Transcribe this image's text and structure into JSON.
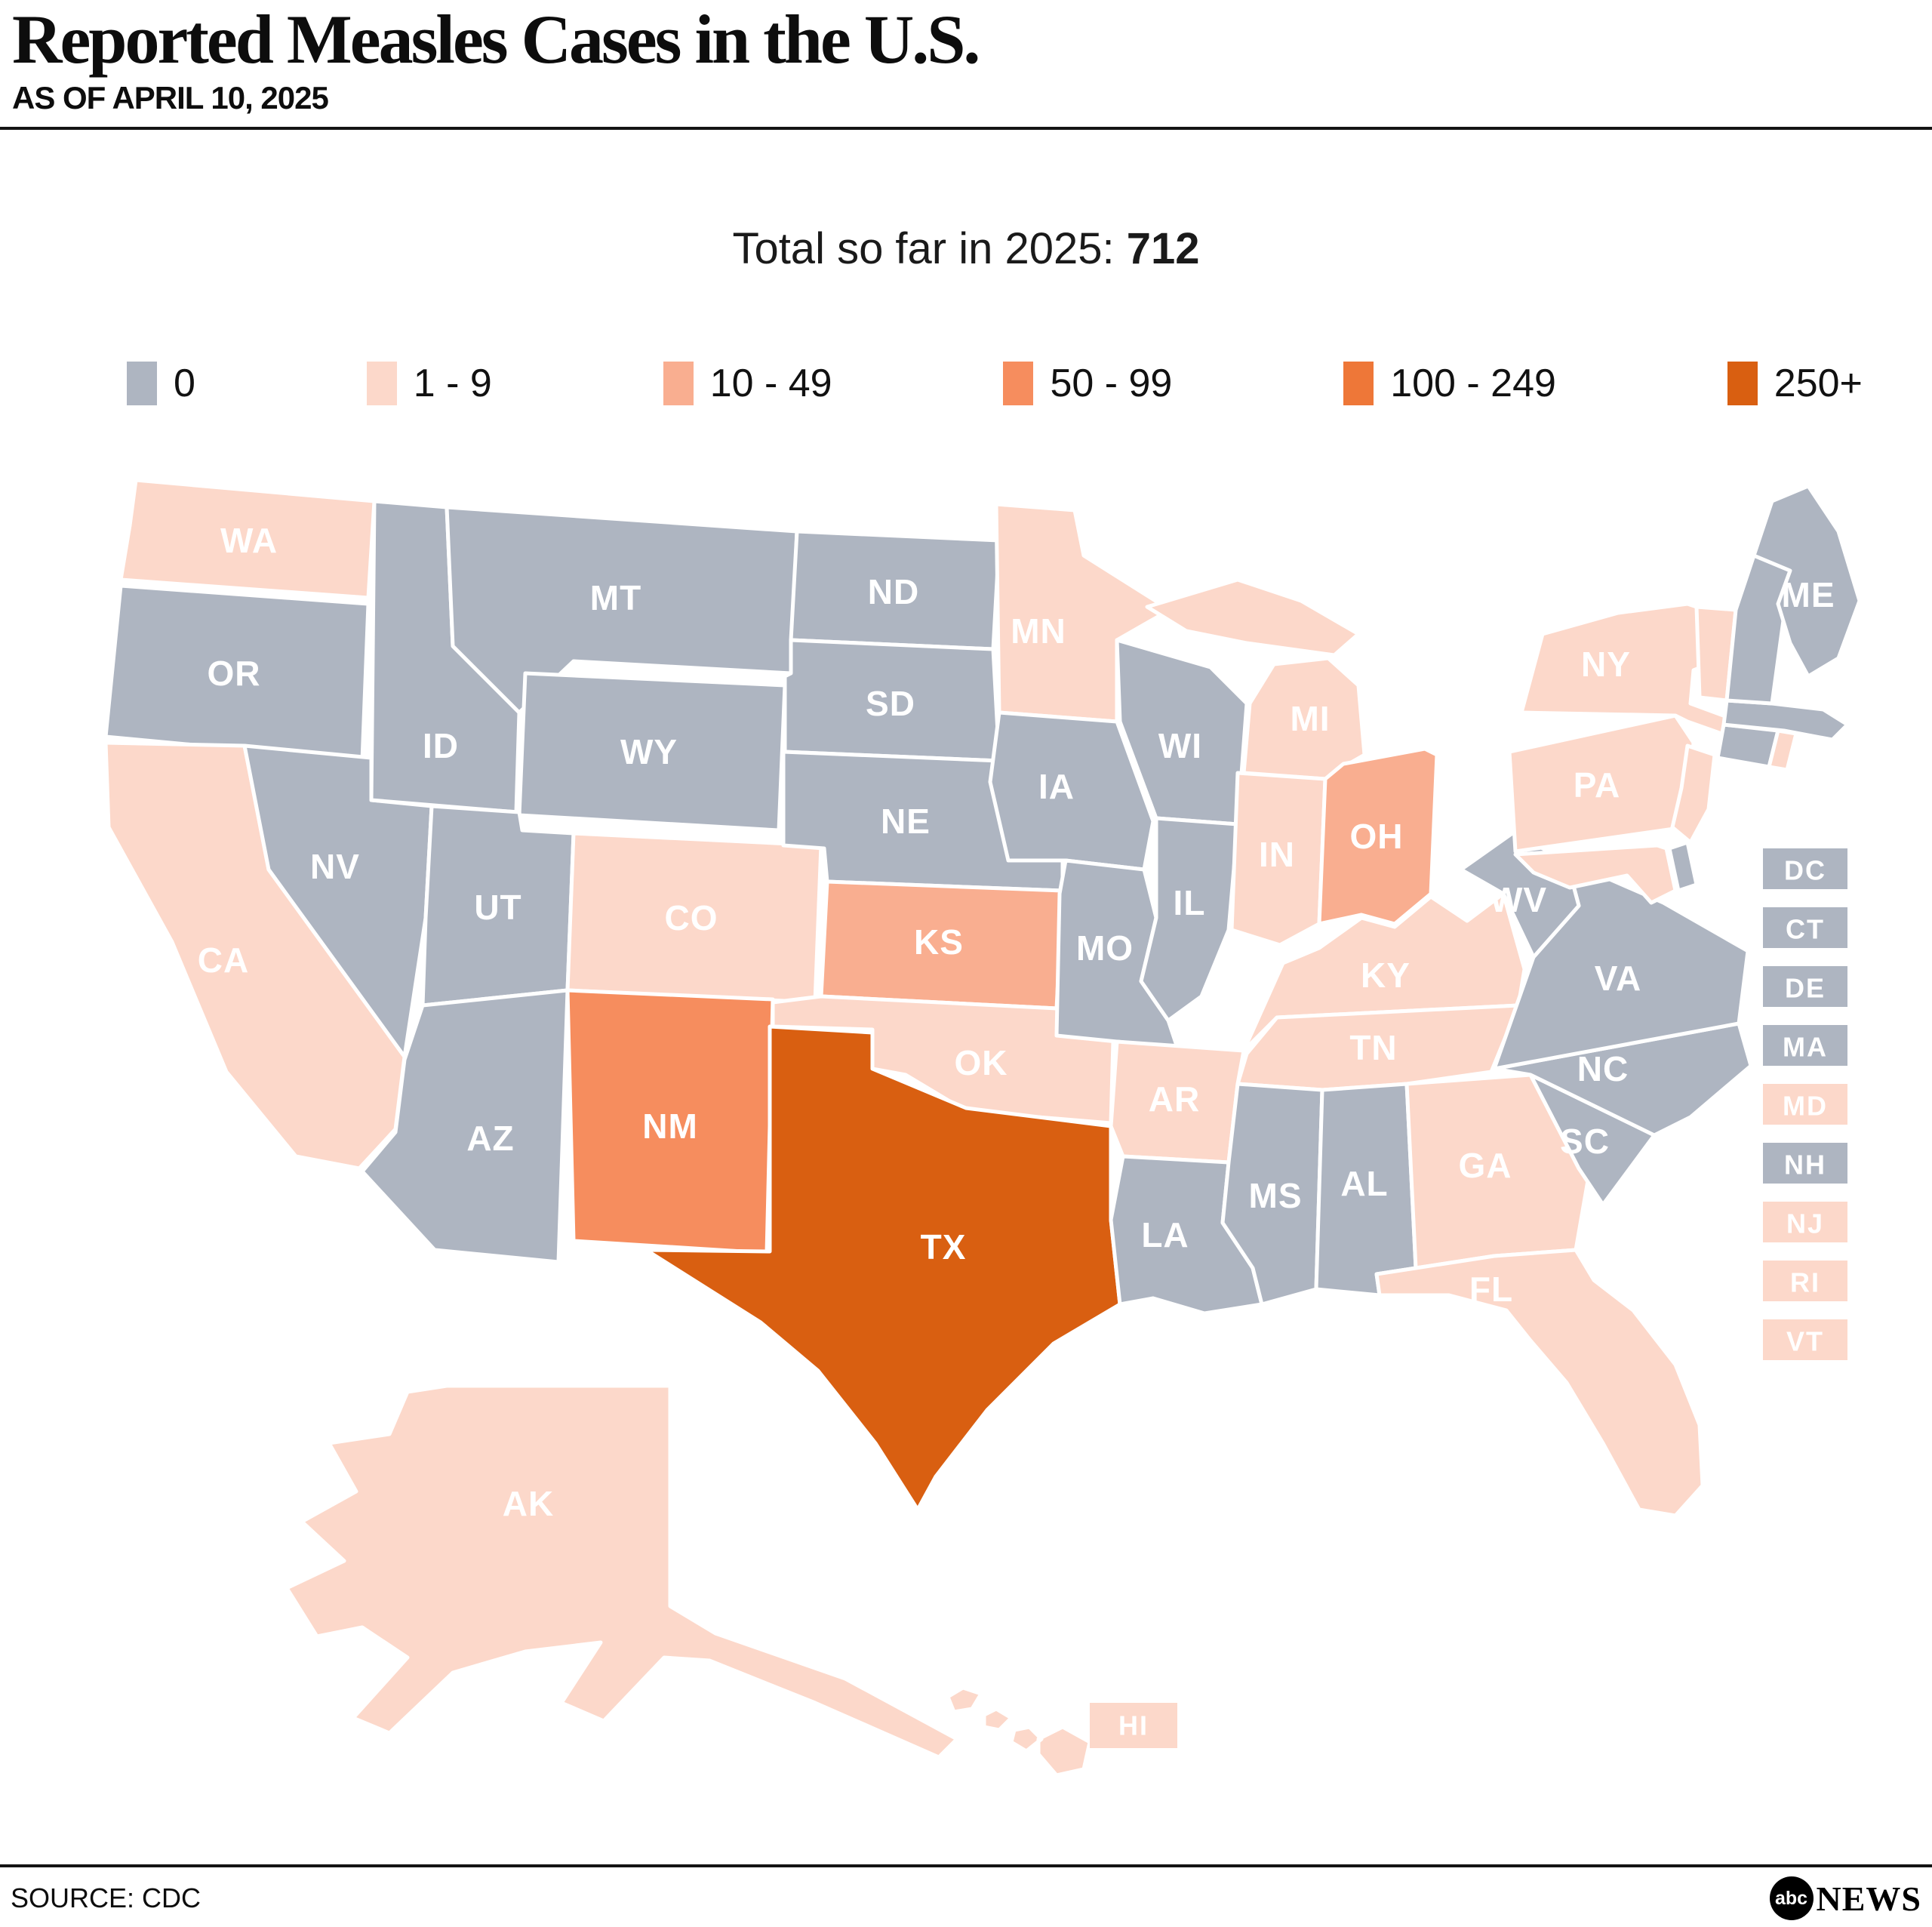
{
  "header": {
    "title": "Reported Measles Cases in the U.S.",
    "subtitle": "AS OF APRIL 10, 2025"
  },
  "total": {
    "label": "Total so far in 2025:",
    "value": "712"
  },
  "legend": {
    "items": [
      {
        "label": "0",
        "color": "#aeb5c1"
      },
      {
        "label": "1 - 9",
        "color": "#fcd8ca"
      },
      {
        "label": "10 - 49",
        "color": "#f9ae90"
      },
      {
        "label": "50 - 99",
        "color": "#f68d5e"
      },
      {
        "label": "100 - 249",
        "color": "#ee7738"
      },
      {
        "label": "250+",
        "color": "#d95f11"
      }
    ]
  },
  "map": {
    "states": [
      {
        "abbr": "WA",
        "cases": "1 - 9"
      },
      {
        "abbr": "OR",
        "cases": "0"
      },
      {
        "abbr": "CA",
        "cases": "1 - 9"
      },
      {
        "abbr": "NV",
        "cases": "0"
      },
      {
        "abbr": "ID",
        "cases": "0"
      },
      {
        "abbr": "MT",
        "cases": "0"
      },
      {
        "abbr": "WY",
        "cases": "0"
      },
      {
        "abbr": "UT",
        "cases": "0"
      },
      {
        "abbr": "CO",
        "cases": "1 - 9"
      },
      {
        "abbr": "AZ",
        "cases": "0"
      },
      {
        "abbr": "NM",
        "cases": "50 - 99"
      },
      {
        "abbr": "ND",
        "cases": "0"
      },
      {
        "abbr": "SD",
        "cases": "0"
      },
      {
        "abbr": "NE",
        "cases": "0"
      },
      {
        "abbr": "KS",
        "cases": "10 - 49"
      },
      {
        "abbr": "OK",
        "cases": "1 - 9"
      },
      {
        "abbr": "TX",
        "cases": "250+"
      },
      {
        "abbr": "MN",
        "cases": "1 - 9"
      },
      {
        "abbr": "IA",
        "cases": "0"
      },
      {
        "abbr": "MO",
        "cases": "0"
      },
      {
        "abbr": "WI",
        "cases": "0"
      },
      {
        "abbr": "IL",
        "cases": "0"
      },
      {
        "abbr": "MI",
        "cases": "1 - 9"
      },
      {
        "abbr": "IN",
        "cases": "1 - 9"
      },
      {
        "abbr": "OH",
        "cases": "10 - 49"
      },
      {
        "abbr": "KY",
        "cases": "1 - 9"
      },
      {
        "abbr": "TN",
        "cases": "1 - 9"
      },
      {
        "abbr": "AR",
        "cases": "1 - 9"
      },
      {
        "abbr": "LA",
        "cases": "0"
      },
      {
        "abbr": "MS",
        "cases": "0"
      },
      {
        "abbr": "AL",
        "cases": "0"
      },
      {
        "abbr": "GA",
        "cases": "1 - 9"
      },
      {
        "abbr": "FL",
        "cases": "1 - 9"
      },
      {
        "abbr": "SC",
        "cases": "0"
      },
      {
        "abbr": "NC",
        "cases": "0"
      },
      {
        "abbr": "VA",
        "cases": "0"
      },
      {
        "abbr": "WV",
        "cases": "0"
      },
      {
        "abbr": "PA",
        "cases": "1 - 9"
      },
      {
        "abbr": "NY",
        "cases": "1 - 9"
      },
      {
        "abbr": "NJ",
        "cases": "1 - 9"
      },
      {
        "abbr": "DE",
        "cases": "0"
      },
      {
        "abbr": "MD",
        "cases": "1 - 9"
      },
      {
        "abbr": "DC",
        "cases": "0"
      },
      {
        "abbr": "CT",
        "cases": "0"
      },
      {
        "abbr": "RI",
        "cases": "1 - 9"
      },
      {
        "abbr": "MA",
        "cases": "0"
      },
      {
        "abbr": "VT",
        "cases": "1 - 9"
      },
      {
        "abbr": "NH",
        "cases": "0"
      },
      {
        "abbr": "ME",
        "cases": "0"
      },
      {
        "abbr": "AK",
        "cases": "1 - 9"
      },
      {
        "abbr": "HI",
        "cases": "1 - 9"
      }
    ],
    "small_states": [
      "DC",
      "CT",
      "DE",
      "MA",
      "MD",
      "NH",
      "NJ",
      "RI",
      "VT"
    ]
  },
  "footer": {
    "source": "SOURCE: CDC",
    "logo_abc": "abc",
    "logo_news": "NEWS"
  }
}
